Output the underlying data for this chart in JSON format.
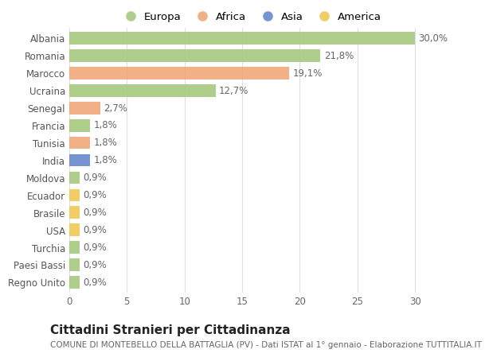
{
  "categories": [
    "Albania",
    "Romania",
    "Marocco",
    "Ucraina",
    "Senegal",
    "Francia",
    "Tunisia",
    "India",
    "Moldova",
    "Ecuador",
    "Brasile",
    "USA",
    "Turchia",
    "Paesi Bassi",
    "Regno Unito"
  ],
  "values": [
    30.0,
    21.8,
    19.1,
    12.7,
    2.7,
    1.8,
    1.8,
    1.8,
    0.9,
    0.9,
    0.9,
    0.9,
    0.9,
    0.9,
    0.9
  ],
  "labels": [
    "30,0%",
    "21,8%",
    "19,1%",
    "12,7%",
    "2,7%",
    "1,8%",
    "1,8%",
    "1,8%",
    "0,9%",
    "0,9%",
    "0,9%",
    "0,9%",
    "0,9%",
    "0,9%",
    "0,9%"
  ],
  "continents": [
    "Europa",
    "Europa",
    "Africa",
    "Europa",
    "Africa",
    "Europa",
    "Africa",
    "Asia",
    "Europa",
    "America",
    "America",
    "America",
    "Europa",
    "Europa",
    "Europa"
  ],
  "continent_colors": {
    "Europa": "#a8c97f",
    "Africa": "#f0a878",
    "Asia": "#6688cc",
    "America": "#f0c855"
  },
  "legend_order": [
    "Europa",
    "Africa",
    "Asia",
    "America"
  ],
  "title": "Cittadini Stranieri per Cittadinanza",
  "subtitle": "COMUNE DI MONTEBELLO DELLA BATTAGLIA (PV) - Dati ISTAT al 1° gennaio - Elaborazione TUTTITALIA.IT",
  "xlim": [
    0,
    31.5
  ],
  "xticks": [
    0,
    5,
    10,
    15,
    20,
    25,
    30
  ],
  "background_color": "#ffffff",
  "grid_color": "#e0e0e0",
  "bar_height": 0.72,
  "label_fontsize": 8.5,
  "tick_fontsize": 8.5,
  "legend_fontsize": 9.5,
  "title_fontsize": 11,
  "subtitle_fontsize": 7.5
}
